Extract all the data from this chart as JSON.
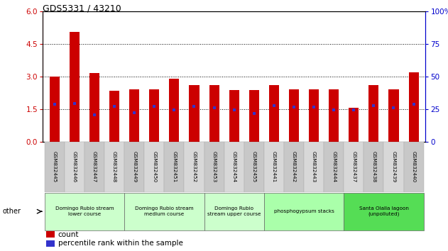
{
  "title": "GDS5331 / 43210",
  "samples": [
    "GSM832445",
    "GSM832446",
    "GSM832447",
    "GSM832448",
    "GSM832449",
    "GSM832450",
    "GSM832451",
    "GSM832452",
    "GSM832453",
    "GSM832454",
    "GSM832455",
    "GSM832441",
    "GSM832442",
    "GSM832443",
    "GSM832444",
    "GSM832437",
    "GSM832438",
    "GSM832439",
    "GSM832440"
  ],
  "counts": [
    3.0,
    5.05,
    3.15,
    2.35,
    2.4,
    2.4,
    2.9,
    2.6,
    2.6,
    2.38,
    2.38,
    2.6,
    2.4,
    2.4,
    2.4,
    1.58,
    2.6,
    2.4,
    3.2
  ],
  "percentile_ranks_left": [
    1.72,
    1.75,
    1.25,
    1.63,
    1.35,
    1.63,
    1.48,
    1.63,
    1.55,
    1.48,
    1.32,
    1.65,
    1.6,
    1.6,
    1.48,
    1.48,
    1.65,
    1.55,
    1.72
  ],
  "bar_color": "#cc0000",
  "dot_color": "#3333cc",
  "ylim_left": [
    0,
    6
  ],
  "ylim_right": [
    0,
    100
  ],
  "yticks_left": [
    0,
    1.5,
    3.0,
    4.5,
    6.0
  ],
  "yticks_right": [
    0,
    25,
    50,
    75,
    100
  ],
  "groups": [
    {
      "label": "Domingo Rubio stream\nlower course",
      "start": 0,
      "end": 4,
      "color": "#ccffcc"
    },
    {
      "label": "Domingo Rubio stream\nmedium course",
      "start": 4,
      "end": 8,
      "color": "#ccffcc"
    },
    {
      "label": "Domingo Rubio\nstream upper course",
      "start": 8,
      "end": 11,
      "color": "#ccffcc"
    },
    {
      "label": "phosphogypsum stacks",
      "start": 11,
      "end": 15,
      "color": "#aaffaa"
    },
    {
      "label": "Santa Olalla lagoon\n(unpolluted)",
      "start": 15,
      "end": 19,
      "color": "#55dd55"
    }
  ],
  "left_axis_color": "#cc0000",
  "right_axis_color": "#0000cc",
  "bar_width": 0.5,
  "legend_count_label": "count",
  "legend_pct_label": "percentile rank within the sample",
  "bg_color": "#f0f0f0"
}
